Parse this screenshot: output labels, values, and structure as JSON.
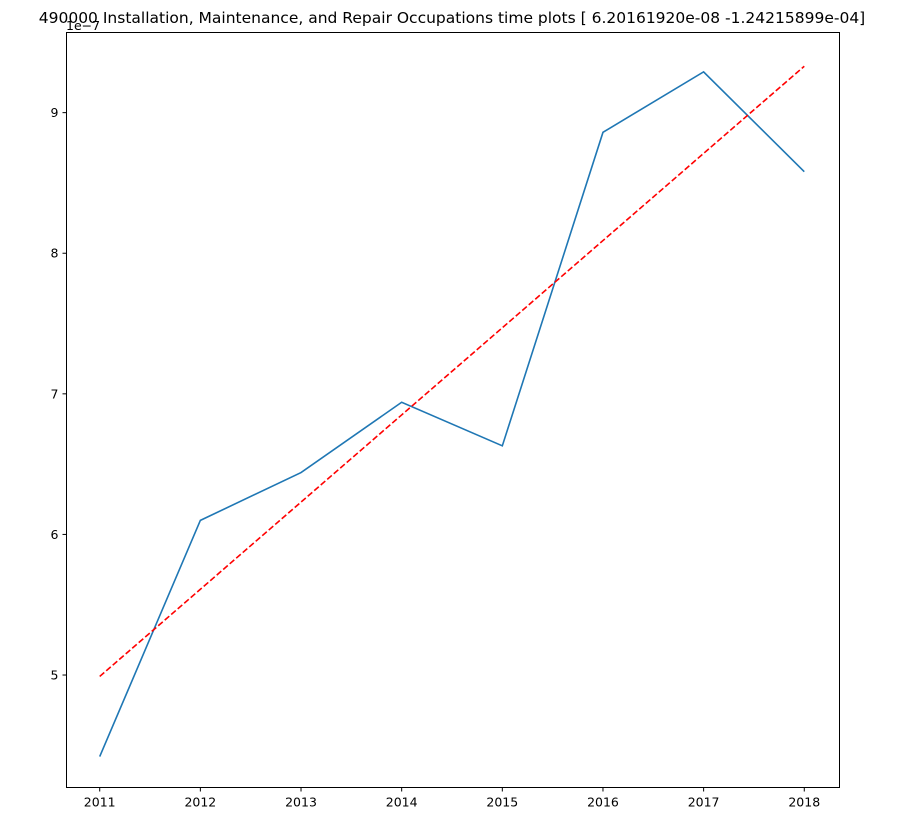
{
  "chart_data": {
    "type": "line",
    "title": "490000 Installation, Maintenance, and Repair Occupations time plots [ 6.20161920e-08 -1.24215899e-04]",
    "y_offset_label": "1e−7",
    "x": [
      2011,
      2012,
      2013,
      2014,
      2015,
      2016,
      2017,
      2018
    ],
    "x_tick_labels": [
      "2011",
      "2012",
      "2013",
      "2014",
      "2015",
      "2016",
      "2017",
      "2018"
    ],
    "y_tick_values": [
      5,
      6,
      7,
      8,
      9
    ],
    "y_tick_labels": [
      "5",
      "6",
      "7",
      "8",
      "9"
    ],
    "xlim": [
      2010.67,
      2018.35
    ],
    "ylim": [
      4.2,
      9.57
    ],
    "grid": false,
    "series": [
      {
        "style": "solid",
        "color": "#1f77b4",
        "values": [
          4.42,
          6.1,
          6.44,
          6.94,
          6.63,
          8.86,
          9.29,
          8.58
        ]
      },
      {
        "style": "dashed",
        "color": "#ff0000",
        "values": [
          4.99,
          5.61,
          6.23,
          6.85,
          7.47,
          8.09,
          8.71,
          9.33
        ]
      }
    ]
  }
}
